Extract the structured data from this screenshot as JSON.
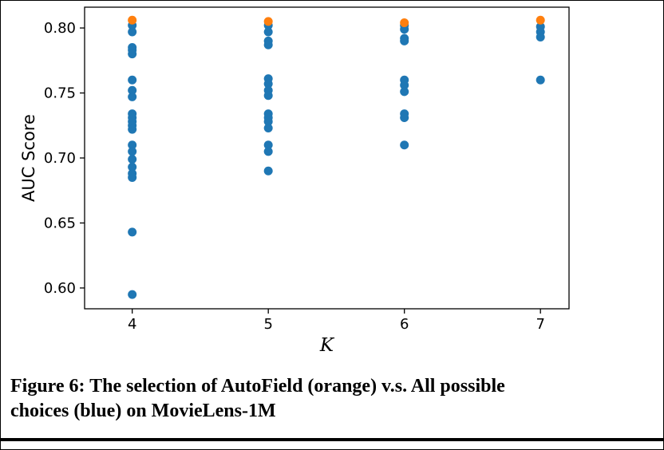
{
  "figure": {
    "caption_line1": "Figure 6: The selection of AutoField (orange) v.s. All possible",
    "caption_line2": "choices (blue) on MovieLens-1M"
  },
  "chart_data": {
    "type": "scatter",
    "title": "",
    "xlabel": "K",
    "ylabel": "AUC Score",
    "xlim": [
      3.65,
      7.21
    ],
    "ylim": [
      0.584,
      0.816
    ],
    "grid": false,
    "legend_position": "none",
    "x_ticks": [
      {
        "value": 4,
        "label": "4"
      },
      {
        "value": 5,
        "label": "5"
      },
      {
        "value": 6,
        "label": "6"
      },
      {
        "value": 7,
        "label": "7"
      }
    ],
    "y_ticks": [
      {
        "value": 0.6,
        "label": "0.60"
      },
      {
        "value": 0.65,
        "label": "0.65"
      },
      {
        "value": 0.7,
        "label": "0.70"
      },
      {
        "value": 0.75,
        "label": "0.75"
      },
      {
        "value": 0.8,
        "label": "0.80"
      }
    ],
    "series": [
      {
        "name": "All possible choices",
        "key": "all-choices",
        "color": "#1f77b4",
        "points": [
          [
            4,
            0.802
          ],
          [
            4,
            0.797
          ],
          [
            4,
            0.785
          ],
          [
            4,
            0.783
          ],
          [
            4,
            0.78
          ],
          [
            4,
            0.76
          ],
          [
            4,
            0.752
          ],
          [
            4,
            0.747
          ],
          [
            4,
            0.734
          ],
          [
            4,
            0.731
          ],
          [
            4,
            0.728
          ],
          [
            4,
            0.725
          ],
          [
            4,
            0.722
          ],
          [
            4,
            0.71
          ],
          [
            4,
            0.705
          ],
          [
            4,
            0.699
          ],
          [
            4,
            0.693
          ],
          [
            4,
            0.688
          ],
          [
            4,
            0.685
          ],
          [
            4,
            0.643
          ],
          [
            4,
            0.595
          ],
          [
            5,
            0.802
          ],
          [
            5,
            0.797
          ],
          [
            5,
            0.79
          ],
          [
            5,
            0.787
          ],
          [
            5,
            0.761
          ],
          [
            5,
            0.757
          ],
          [
            5,
            0.752
          ],
          [
            5,
            0.748
          ],
          [
            5,
            0.734
          ],
          [
            5,
            0.731
          ],
          [
            5,
            0.728
          ],
          [
            5,
            0.723
          ],
          [
            5,
            0.71
          ],
          [
            5,
            0.705
          ],
          [
            5,
            0.69
          ],
          [
            6,
            0.802
          ],
          [
            6,
            0.799
          ],
          [
            6,
            0.792
          ],
          [
            6,
            0.79
          ],
          [
            6,
            0.76
          ],
          [
            6,
            0.756
          ],
          [
            6,
            0.751
          ],
          [
            6,
            0.734
          ],
          [
            6,
            0.731
          ],
          [
            6,
            0.71
          ],
          [
            7,
            0.801
          ],
          [
            7,
            0.797
          ],
          [
            7,
            0.793
          ],
          [
            7,
            0.76
          ]
        ]
      },
      {
        "name": "AutoField selection",
        "key": "autofield",
        "color": "#ff7f0e",
        "points": [
          [
            4,
            0.806
          ],
          [
            5,
            0.805
          ],
          [
            6,
            0.804
          ],
          [
            7,
            0.806
          ]
        ]
      }
    ]
  }
}
